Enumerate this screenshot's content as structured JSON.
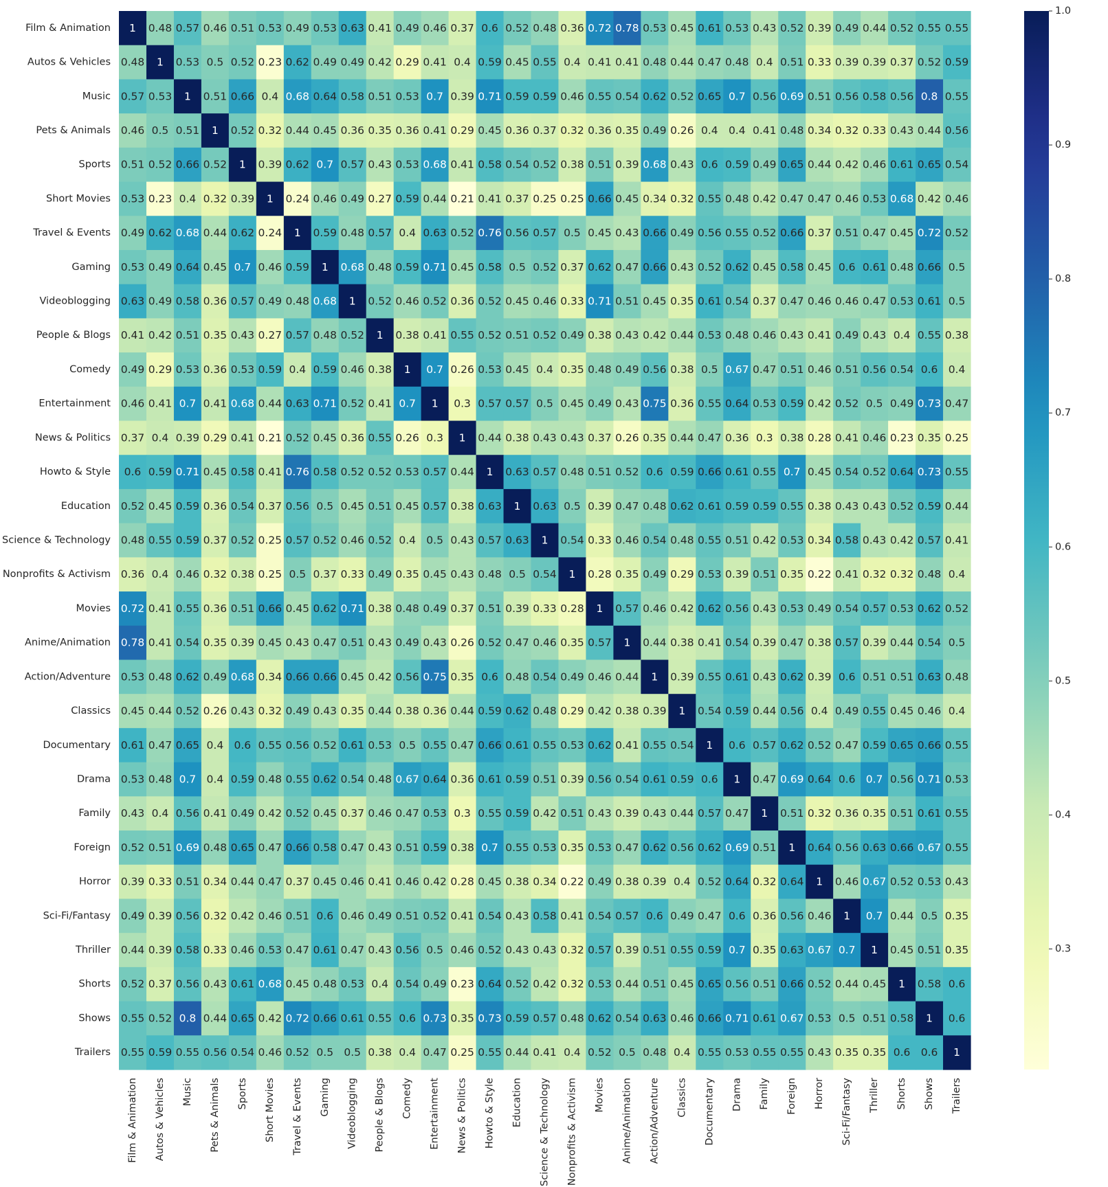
{
  "chart_data": {
    "type": "heatmap",
    "title": "",
    "xlabel": "",
    "ylabel": "",
    "colormap": "YlGnBu",
    "grid": false,
    "annotated": true,
    "colorbar": {
      "placement": "right",
      "range": [
        0.21,
        1.0
      ],
      "ticks": [
        0.3,
        0.4,
        0.5,
        0.6,
        0.7,
        0.8,
        0.9,
        1.0
      ],
      "tick_labels": [
        "0.3",
        "0.4",
        "0.5",
        "0.6",
        "0.7",
        "0.8",
        "0.9",
        "1.0"
      ]
    },
    "categories": [
      "Film & Animation",
      "Autos & Vehicles",
      "Music",
      "Pets & Animals",
      "Sports",
      "Short Movies",
      "Travel & Events",
      "Gaming",
      "Videoblogging",
      "People & Blogs",
      "Comedy",
      "Entertainment",
      "News & Politics",
      "Howto & Style",
      "Education",
      "Science & Technology",
      "Nonprofits & Activism",
      "Movies",
      "Anime/Animation",
      "Action/Adventure",
      "Classics",
      "Documentary",
      "Drama",
      "Family",
      "Foreign",
      "Horror",
      "Sci-Fi/Fantasy",
      "Thriller",
      "Shorts",
      "Shows",
      "Trailers"
    ],
    "matrix": [
      [
        1,
        0.48,
        0.57,
        0.46,
        0.51,
        0.53,
        0.49,
        0.53,
        0.63,
        0.41,
        0.49,
        0.46,
        0.37,
        0.6,
        0.52,
        0.48,
        0.36,
        0.72,
        0.78,
        0.53,
        0.45,
        0.61,
        0.53,
        0.43,
        0.52,
        0.39,
        0.49,
        0.44,
        0.52,
        0.55,
        0.55
      ],
      [
        0.48,
        1,
        0.53,
        0.5,
        0.52,
        0.23,
        0.62,
        0.49,
        0.49,
        0.42,
        0.29,
        0.41,
        0.4,
        0.59,
        0.45,
        0.55,
        0.4,
        0.41,
        0.41,
        0.48,
        0.44,
        0.47,
        0.48,
        0.4,
        0.51,
        0.33,
        0.39,
        0.39,
        0.37,
        0.52,
        0.59
      ],
      [
        0.57,
        0.53,
        1,
        0.51,
        0.66,
        0.4,
        0.68,
        0.64,
        0.58,
        0.51,
        0.53,
        0.7,
        0.39,
        0.71,
        0.59,
        0.59,
        0.46,
        0.55,
        0.54,
        0.62,
        0.52,
        0.65,
        0.7,
        0.56,
        0.69,
        0.51,
        0.56,
        0.58,
        0.56,
        0.8,
        0.55
      ],
      [
        0.46,
        0.5,
        0.51,
        1,
        0.52,
        0.32,
        0.44,
        0.45,
        0.36,
        0.35,
        0.36,
        0.41,
        0.29,
        0.45,
        0.36,
        0.37,
        0.32,
        0.36,
        0.35,
        0.49,
        0.26,
        0.4,
        0.4,
        0.41,
        0.48,
        0.34,
        0.32,
        0.33,
        0.43,
        0.44,
        0.56
      ],
      [
        0.51,
        0.52,
        0.66,
        0.52,
        1,
        0.39,
        0.62,
        0.7,
        0.57,
        0.43,
        0.53,
        0.68,
        0.41,
        0.58,
        0.54,
        0.52,
        0.38,
        0.51,
        0.39,
        0.68,
        0.43,
        0.6,
        0.59,
        0.49,
        0.65,
        0.44,
        0.42,
        0.46,
        0.61,
        0.65,
        0.54
      ],
      [
        0.53,
        0.23,
        0.4,
        0.32,
        0.39,
        1,
        0.24,
        0.46,
        0.49,
        0.27,
        0.59,
        0.44,
        0.21,
        0.41,
        0.37,
        0.25,
        0.25,
        0.66,
        0.45,
        0.34,
        0.32,
        0.55,
        0.48,
        0.42,
        0.47,
        0.47,
        0.46,
        0.53,
        0.68,
        0.42,
        0.46
      ],
      [
        0.49,
        0.62,
        0.68,
        0.44,
        0.62,
        0.24,
        1,
        0.59,
        0.48,
        0.57,
        0.4,
        0.63,
        0.52,
        0.76,
        0.56,
        0.57,
        0.5,
        0.45,
        0.43,
        0.66,
        0.49,
        0.56,
        0.55,
        0.52,
        0.66,
        0.37,
        0.51,
        0.47,
        0.45,
        0.72,
        0.52
      ],
      [
        0.53,
        0.49,
        0.64,
        0.45,
        0.7,
        0.46,
        0.59,
        1,
        0.68,
        0.48,
        0.59,
        0.71,
        0.45,
        0.58,
        0.5,
        0.52,
        0.37,
        0.62,
        0.47,
        0.66,
        0.43,
        0.52,
        0.62,
        0.45,
        0.58,
        0.45,
        0.6,
        0.61,
        0.48,
        0.66,
        0.5
      ],
      [
        0.63,
        0.49,
        0.58,
        0.36,
        0.57,
        0.49,
        0.48,
        0.68,
        1,
        0.52,
        0.46,
        0.52,
        0.36,
        0.52,
        0.45,
        0.46,
        0.33,
        0.71,
        0.51,
        0.45,
        0.35,
        0.61,
        0.54,
        0.37,
        0.47,
        0.46,
        0.46,
        0.47,
        0.53,
        0.61,
        0.5
      ],
      [
        0.41,
        0.42,
        0.51,
        0.35,
        0.43,
        0.27,
        0.57,
        0.48,
        0.52,
        1,
        0.38,
        0.41,
        0.55,
        0.52,
        0.51,
        0.52,
        0.49,
        0.38,
        0.43,
        0.42,
        0.44,
        0.53,
        0.48,
        0.46,
        0.43,
        0.41,
        0.49,
        0.43,
        0.4,
        0.55,
        0.38
      ],
      [
        0.49,
        0.29,
        0.53,
        0.36,
        0.53,
        0.59,
        0.4,
        0.59,
        0.46,
        0.38,
        1,
        0.7,
        0.26,
        0.53,
        0.45,
        0.4,
        0.35,
        0.48,
        0.49,
        0.56,
        0.38,
        0.5,
        0.67,
        0.47,
        0.51,
        0.46,
        0.51,
        0.56,
        0.54,
        0.6,
        0.4
      ],
      [
        0.46,
        0.41,
        0.7,
        0.41,
        0.68,
        0.44,
        0.63,
        0.71,
        0.52,
        0.41,
        0.7,
        1,
        0.3,
        0.57,
        0.57,
        0.5,
        0.45,
        0.49,
        0.43,
        0.75,
        0.36,
        0.55,
        0.64,
        0.53,
        0.59,
        0.42,
        0.52,
        0.5,
        0.49,
        0.73,
        0.47
      ],
      [
        0.37,
        0.4,
        0.39,
        0.29,
        0.41,
        0.21,
        0.52,
        0.45,
        0.36,
        0.55,
        0.26,
        0.3,
        1,
        0.44,
        0.38,
        0.43,
        0.43,
        0.37,
        0.26,
        0.35,
        0.44,
        0.47,
        0.36,
        0.3,
        0.38,
        0.28,
        0.41,
        0.46,
        0.23,
        0.35,
        0.25
      ],
      [
        0.6,
        0.59,
        0.71,
        0.45,
        0.58,
        0.41,
        0.76,
        0.58,
        0.52,
        0.52,
        0.53,
        0.57,
        0.44,
        1,
        0.63,
        0.57,
        0.48,
        0.51,
        0.52,
        0.6,
        0.59,
        0.66,
        0.61,
        0.55,
        0.7,
        0.45,
        0.54,
        0.52,
        0.64,
        0.73,
        0.55
      ],
      [
        0.52,
        0.45,
        0.59,
        0.36,
        0.54,
        0.37,
        0.56,
        0.5,
        0.45,
        0.51,
        0.45,
        0.57,
        0.38,
        0.63,
        1,
        0.63,
        0.5,
        0.39,
        0.47,
        0.48,
        0.62,
        0.61,
        0.59,
        0.59,
        0.55,
        0.38,
        0.43,
        0.43,
        0.52,
        0.59,
        0.44
      ],
      [
        0.48,
        0.55,
        0.59,
        0.37,
        0.52,
        0.25,
        0.57,
        0.52,
        0.46,
        0.52,
        0.4,
        0.5,
        0.43,
        0.57,
        0.63,
        1,
        0.54,
        0.33,
        0.46,
        0.54,
        0.48,
        0.55,
        0.51,
        0.42,
        0.53,
        0.34,
        0.58,
        0.43,
        0.42,
        0.57,
        0.41
      ],
      [
        0.36,
        0.4,
        0.46,
        0.32,
        0.38,
        0.25,
        0.5,
        0.37,
        0.33,
        0.49,
        0.35,
        0.45,
        0.43,
        0.48,
        0.5,
        0.54,
        1,
        0.28,
        0.35,
        0.49,
        0.29,
        0.53,
        0.39,
        0.51,
        0.35,
        0.22,
        0.41,
        0.32,
        0.32,
        0.48,
        0.4
      ],
      [
        0.72,
        0.41,
        0.55,
        0.36,
        0.51,
        0.66,
        0.45,
        0.62,
        0.71,
        0.38,
        0.48,
        0.49,
        0.37,
        0.51,
        0.39,
        0.33,
        0.28,
        1,
        0.57,
        0.46,
        0.42,
        0.62,
        0.56,
        0.43,
        0.53,
        0.49,
        0.54,
        0.57,
        0.53,
        0.62,
        0.52
      ],
      [
        0.78,
        0.41,
        0.54,
        0.35,
        0.39,
        0.45,
        0.43,
        0.47,
        0.51,
        0.43,
        0.49,
        0.43,
        0.26,
        0.52,
        0.47,
        0.46,
        0.35,
        0.57,
        1,
        0.44,
        0.38,
        0.41,
        0.54,
        0.39,
        0.47,
        0.38,
        0.57,
        0.39,
        0.44,
        0.54,
        0.5
      ],
      [
        0.53,
        0.48,
        0.62,
        0.49,
        0.68,
        0.34,
        0.66,
        0.66,
        0.45,
        0.42,
        0.56,
        0.75,
        0.35,
        0.6,
        0.48,
        0.54,
        0.49,
        0.46,
        0.44,
        1,
        0.39,
        0.55,
        0.61,
        0.43,
        0.62,
        0.39,
        0.6,
        0.51,
        0.51,
        0.63,
        0.48
      ],
      [
        0.45,
        0.44,
        0.52,
        0.26,
        0.43,
        0.32,
        0.49,
        0.43,
        0.35,
        0.44,
        0.38,
        0.36,
        0.44,
        0.59,
        0.62,
        0.48,
        0.29,
        0.42,
        0.38,
        0.39,
        1,
        0.54,
        0.59,
        0.44,
        0.56,
        0.4,
        0.49,
        0.55,
        0.45,
        0.46,
        0.4
      ],
      [
        0.61,
        0.47,
        0.65,
        0.4,
        0.6,
        0.55,
        0.56,
        0.52,
        0.61,
        0.53,
        0.5,
        0.55,
        0.47,
        0.66,
        0.61,
        0.55,
        0.53,
        0.62,
        0.41,
        0.55,
        0.54,
        1,
        0.6,
        0.57,
        0.62,
        0.52,
        0.47,
        0.59,
        0.65,
        0.66,
        0.55
      ],
      [
        0.53,
        0.48,
        0.7,
        0.4,
        0.59,
        0.48,
        0.55,
        0.62,
        0.54,
        0.48,
        0.67,
        0.64,
        0.36,
        0.61,
        0.59,
        0.51,
        0.39,
        0.56,
        0.54,
        0.61,
        0.59,
        0.6,
        1,
        0.47,
        0.69,
        0.64,
        0.6,
        0.7,
        0.56,
        0.71,
        0.53
      ],
      [
        0.43,
        0.4,
        0.56,
        0.41,
        0.49,
        0.42,
        0.52,
        0.45,
        0.37,
        0.46,
        0.47,
        0.53,
        0.3,
        0.55,
        0.59,
        0.42,
        0.51,
        0.43,
        0.39,
        0.43,
        0.44,
        0.57,
        0.47,
        1,
        0.51,
        0.32,
        0.36,
        0.35,
        0.51,
        0.61,
        0.55
      ],
      [
        0.52,
        0.51,
        0.69,
        0.48,
        0.65,
        0.47,
        0.66,
        0.58,
        0.47,
        0.43,
        0.51,
        0.59,
        0.38,
        0.7,
        0.55,
        0.53,
        0.35,
        0.53,
        0.47,
        0.62,
        0.56,
        0.62,
        0.69,
        0.51,
        1,
        0.64,
        0.56,
        0.63,
        0.66,
        0.67,
        0.55
      ],
      [
        0.39,
        0.33,
        0.51,
        0.34,
        0.44,
        0.47,
        0.37,
        0.45,
        0.46,
        0.41,
        0.46,
        0.42,
        0.28,
        0.45,
        0.38,
        0.34,
        0.22,
        0.49,
        0.38,
        0.39,
        0.4,
        0.52,
        0.64,
        0.32,
        0.64,
        1,
        0.46,
        0.67,
        0.52,
        0.53,
        0.43
      ],
      [
        0.49,
        0.39,
        0.56,
        0.32,
        0.42,
        0.46,
        0.51,
        0.6,
        0.46,
        0.49,
        0.51,
        0.52,
        0.41,
        0.54,
        0.43,
        0.58,
        0.41,
        0.54,
        0.57,
        0.6,
        0.49,
        0.47,
        0.6,
        0.36,
        0.56,
        0.46,
        1,
        0.7,
        0.44,
        0.5,
        0.35
      ],
      [
        0.44,
        0.39,
        0.58,
        0.33,
        0.46,
        0.53,
        0.47,
        0.61,
        0.47,
        0.43,
        0.56,
        0.5,
        0.46,
        0.52,
        0.43,
        0.43,
        0.32,
        0.57,
        0.39,
        0.51,
        0.55,
        0.59,
        0.7,
        0.35,
        0.63,
        0.67,
        0.7,
        1,
        0.45,
        0.51,
        0.35
      ],
      [
        0.52,
        0.37,
        0.56,
        0.43,
        0.61,
        0.68,
        0.45,
        0.48,
        0.53,
        0.4,
        0.54,
        0.49,
        0.23,
        0.64,
        0.52,
        0.42,
        0.32,
        0.53,
        0.44,
        0.51,
        0.45,
        0.65,
        0.56,
        0.51,
        0.66,
        0.52,
        0.44,
        0.45,
        1,
        0.58,
        0.6
      ],
      [
        0.55,
        0.52,
        0.8,
        0.44,
        0.65,
        0.42,
        0.72,
        0.66,
        0.61,
        0.55,
        0.6,
        0.73,
        0.35,
        0.73,
        0.59,
        0.57,
        0.48,
        0.62,
        0.54,
        0.63,
        0.46,
        0.66,
        0.71,
        0.61,
        0.67,
        0.53,
        0.5,
        0.51,
        0.58,
        1,
        0.6
      ],
      [
        0.55,
        0.59,
        0.55,
        0.56,
        0.54,
        0.46,
        0.52,
        0.5,
        0.5,
        0.38,
        0.4,
        0.47,
        0.25,
        0.55,
        0.44,
        0.41,
        0.4,
        0.52,
        0.5,
        0.48,
        0.4,
        0.55,
        0.53,
        0.55,
        0.55,
        0.43,
        0.35,
        0.35,
        0.6,
        0.6,
        1
      ]
    ]
  }
}
